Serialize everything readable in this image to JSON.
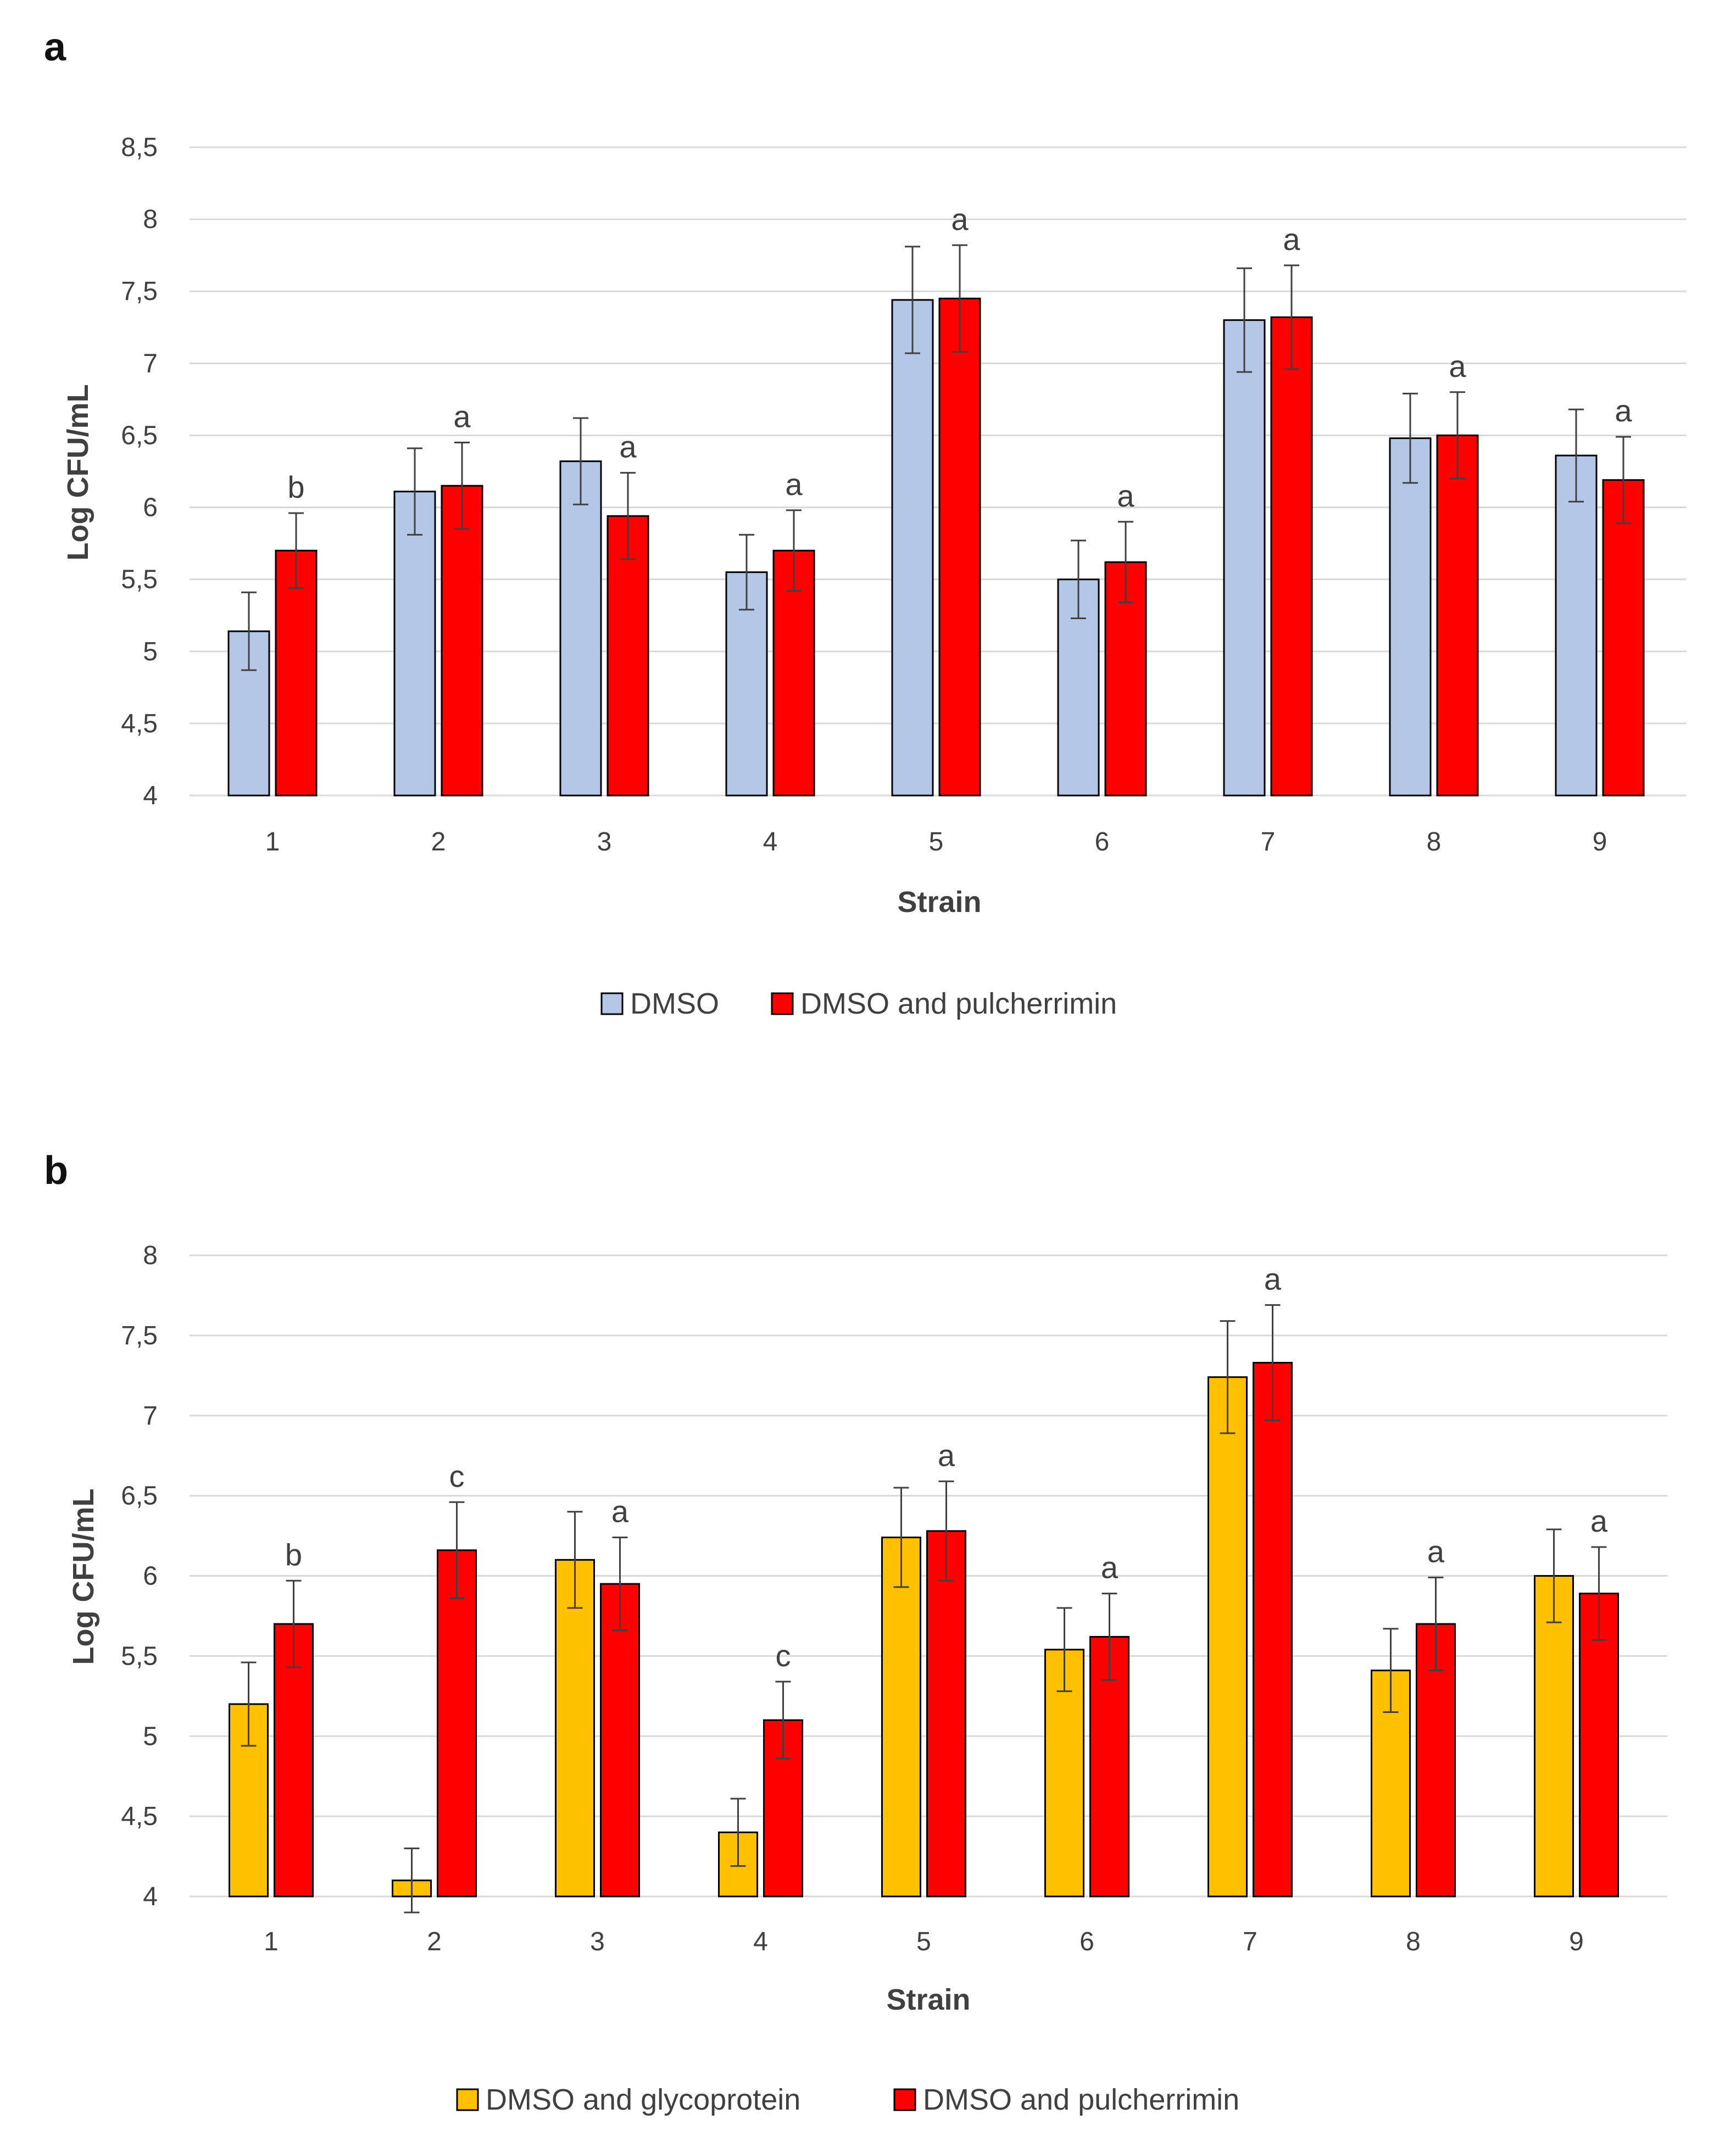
{
  "chart_data": [
    {
      "type": "bar",
      "panel": "a",
      "categories": [
        "1",
        "2",
        "3",
        "4",
        "5",
        "6",
        "7",
        "8",
        "9"
      ],
      "xlabel": "Strain",
      "ylabel": "Log CFU/mL",
      "ylim": [
        4,
        8.5
      ],
      "yticks": [
        "4",
        "4,5",
        "5",
        "5,5",
        "6",
        "6,5",
        "7",
        "7,5",
        "8",
        "8,5"
      ],
      "grid": true,
      "legend_position": "bottom",
      "series": [
        {
          "name": "DMSO",
          "color": "#b4c7e7",
          "values": [
            5.14,
            6.11,
            6.32,
            5.55,
            7.44,
            5.5,
            7.3,
            6.48,
            6.36
          ],
          "errors": [
            0.27,
            0.3,
            0.3,
            0.26,
            0.37,
            0.27,
            0.36,
            0.31,
            0.32
          ]
        },
        {
          "name": "DMSO and pulcherrimin",
          "color": "#ff0000",
          "values": [
            5.7,
            6.15,
            5.94,
            5.7,
            7.45,
            5.62,
            7.32,
            6.5,
            6.19
          ],
          "errors": [
            0.26,
            0.3,
            0.3,
            0.28,
            0.37,
            0.28,
            0.36,
            0.3,
            0.3
          ]
        }
      ],
      "annotations": [
        "b",
        "a",
        "a",
        "a",
        "a",
        "a",
        "a",
        "a",
        "a"
      ]
    },
    {
      "type": "bar",
      "panel": "b",
      "categories": [
        "1",
        "2",
        "3",
        "4",
        "5",
        "6",
        "7",
        "8",
        "9"
      ],
      "xlabel": "Strain",
      "ylabel": "Log CFU/mL",
      "ylim": [
        4,
        8
      ],
      "yticks": [
        "4",
        "4,5",
        "5",
        "5,5",
        "6",
        "6,5",
        "7",
        "7,5",
        "8"
      ],
      "grid": true,
      "legend_position": "bottom",
      "series": [
        {
          "name": "DMSO and glycoprotein",
          "color": "#ffc000",
          "values": [
            5.2,
            4.1,
            6.1,
            4.4,
            6.24,
            5.54,
            7.24,
            5.41,
            6.0
          ],
          "errors": [
            0.26,
            0.2,
            0.3,
            0.21,
            0.31,
            0.26,
            0.35,
            0.26,
            0.29
          ]
        },
        {
          "name": "DMSO and pulcherrimin",
          "color": "#ff0000",
          "values": [
            5.7,
            6.16,
            5.95,
            5.1,
            6.28,
            5.62,
            7.33,
            5.7,
            5.89
          ],
          "errors": [
            0.27,
            0.3,
            0.29,
            0.24,
            0.31,
            0.27,
            0.36,
            0.29,
            0.29
          ]
        }
      ],
      "annotations": [
        "b",
        "c",
        "a",
        "c",
        "a",
        "a",
        "a",
        "a",
        "a"
      ]
    }
  ]
}
